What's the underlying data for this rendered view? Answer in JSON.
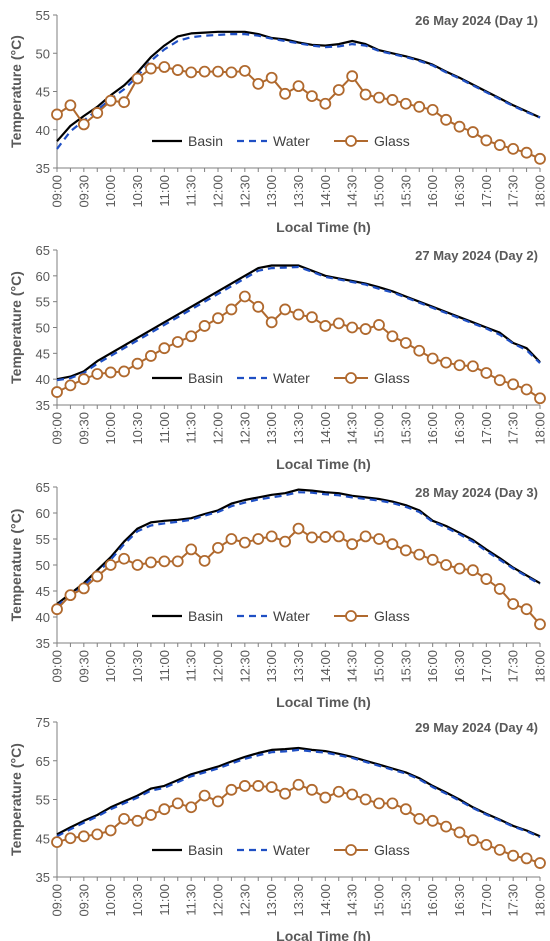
{
  "colors": {
    "basin": "#000000",
    "water": "#1f4fc4",
    "glass": "#b0692e",
    "axis": "#7f7f7f",
    "text": "#595959"
  },
  "chart_data": [
    {
      "type": "line",
      "title": "26 May 2024 (Day 1)",
      "xlabel": "Local Time (h)",
      "ylabel": "Temperature (°C)",
      "ylim": [
        35,
        55
      ],
      "yticks": [
        "35",
        "40",
        "45",
        "50",
        "55"
      ],
      "x": [
        "09:00",
        "09:15",
        "09:30",
        "09:45",
        "10:00",
        "10:15",
        "10:30",
        "10:45",
        "11:00",
        "11:15",
        "11:30",
        "11:45",
        "12:00",
        "12:15",
        "12:30",
        "12:45",
        "13:00",
        "13:15",
        "13:30",
        "13:45",
        "14:00",
        "14:15",
        "14:30",
        "14:45",
        "15:00",
        "15:15",
        "15:30",
        "15:45",
        "16:00",
        "16:15",
        "16:30",
        "16:45",
        "17:00",
        "17:15",
        "17:30",
        "17:45",
        "18:00"
      ],
      "xtick_labels": [
        "09:00",
        "09:30",
        "10:00",
        "10:30",
        "11:00",
        "11:30",
        "12:00",
        "12:30",
        "13:00",
        "13:30",
        "14:00",
        "14:30",
        "15:00",
        "15:30",
        "16:00",
        "16:30",
        "17:00",
        "17:30",
        "18:00"
      ],
      "legend": "inside-lower-center",
      "series": [
        {
          "name": "Basin",
          "values": [
            38.5,
            40.5,
            41.8,
            43.0,
            44.5,
            45.8,
            47.5,
            49.5,
            51.0,
            52.2,
            52.6,
            52.7,
            52.8,
            52.8,
            52.8,
            52.5,
            52.0,
            51.8,
            51.4,
            51.1,
            51.0,
            51.2,
            51.6,
            51.2,
            50.4,
            50.0,
            49.6,
            49.1,
            48.5,
            47.6,
            46.8,
            45.9,
            45.0,
            44.1,
            43.2,
            42.4,
            41.6
          ]
        },
        {
          "name": "Water",
          "values": [
            37.5,
            39.8,
            41.2,
            42.6,
            44.0,
            45.3,
            47.0,
            49.0,
            50.5,
            51.6,
            52.1,
            52.3,
            52.4,
            52.5,
            52.5,
            52.3,
            51.9,
            51.6,
            51.3,
            51.0,
            50.8,
            50.9,
            51.2,
            51.0,
            50.3,
            49.9,
            49.5,
            49.0,
            48.4,
            47.5,
            46.7,
            45.8,
            44.9,
            44.0,
            43.1,
            42.3,
            41.6
          ]
        },
        {
          "name": "Glass",
          "values": [
            42.0,
            43.2,
            40.7,
            42.2,
            43.8,
            43.6,
            46.7,
            48.0,
            48.2,
            47.8,
            47.5,
            47.6,
            47.6,
            47.5,
            47.7,
            46.0,
            46.8,
            44.7,
            45.7,
            44.4,
            43.4,
            45.2,
            47.0,
            44.6,
            44.2,
            43.9,
            43.4,
            43.0,
            42.6,
            41.3,
            40.4,
            39.7,
            38.6,
            38.0,
            37.5,
            37.0,
            36.2
          ]
        }
      ]
    },
    {
      "type": "line",
      "title": "27 May 2024 (Day 2)",
      "xlabel": "Local Time (h)",
      "ylabel": "Temperature (°C)",
      "ylim": [
        35,
        65
      ],
      "yticks": [
        "35",
        "40",
        "45",
        "50",
        "55",
        "60",
        "65"
      ],
      "x": [
        "09:00",
        "09:15",
        "09:30",
        "09:45",
        "10:00",
        "10:15",
        "10:30",
        "10:45",
        "11:00",
        "11:15",
        "11:30",
        "11:45",
        "12:00",
        "12:15",
        "12:30",
        "12:45",
        "13:00",
        "13:15",
        "13:30",
        "13:45",
        "14:00",
        "14:15",
        "14:30",
        "14:45",
        "15:00",
        "15:15",
        "15:30",
        "15:45",
        "16:00",
        "16:15",
        "16:30",
        "16:45",
        "17:00",
        "17:15",
        "17:30",
        "17:45",
        "18:00"
      ],
      "xtick_labels": [
        "09:00",
        "09:30",
        "10:00",
        "10:30",
        "11:00",
        "11:30",
        "12:00",
        "12:30",
        "13:00",
        "13:30",
        "14:00",
        "14:30",
        "15:00",
        "15:30",
        "16:00",
        "16:30",
        "17:00",
        "17:30",
        "18:00"
      ],
      "legend": "inside-lower-center",
      "series": [
        {
          "name": "Basin",
          "values": [
            40.0,
            40.5,
            41.5,
            43.5,
            45.0,
            46.5,
            48.0,
            49.5,
            51.0,
            52.5,
            54.0,
            55.5,
            57.0,
            58.5,
            60.0,
            61.5,
            62.0,
            62.0,
            62.0,
            61.0,
            60.0,
            59.5,
            59.0,
            58.5,
            57.8,
            57.0,
            56.0,
            55.0,
            54.0,
            53.0,
            52.0,
            51.0,
            50.0,
            49.0,
            47.0,
            46.0,
            43.3
          ]
        },
        {
          "name": "Water",
          "values": [
            39.8,
            40.2,
            41.2,
            43.0,
            44.5,
            46.0,
            47.5,
            49.0,
            50.5,
            52.0,
            53.5,
            55.0,
            56.5,
            58.0,
            59.5,
            61.0,
            61.5,
            61.6,
            61.7,
            60.8,
            59.8,
            59.3,
            58.8,
            58.3,
            57.5,
            56.8,
            55.8,
            54.8,
            53.8,
            52.8,
            51.8,
            50.8,
            49.8,
            48.6,
            46.9,
            45.6,
            43.1
          ]
        },
        {
          "name": "Glass",
          "values": [
            37.5,
            38.8,
            40.0,
            41.0,
            41.3,
            41.5,
            43.0,
            44.5,
            46.0,
            47.2,
            48.3,
            50.3,
            51.8,
            53.5,
            56.0,
            54.0,
            51.0,
            53.5,
            52.5,
            52.0,
            50.3,
            50.8,
            50.0,
            49.7,
            50.5,
            48.3,
            47.0,
            45.5,
            44.0,
            43.2,
            42.7,
            42.5,
            41.2,
            39.8,
            39.0,
            38.0,
            36.3
          ]
        }
      ]
    },
    {
      "type": "line",
      "title": "28 May 2024 (Day 3)",
      "xlabel": "Local Time (h)",
      "ylabel": "Temperature (°C)",
      "ylim": [
        35,
        65
      ],
      "yticks": [
        "35",
        "40",
        "45",
        "50",
        "55",
        "60",
        "65"
      ],
      "x": [
        "09:00",
        "09:15",
        "09:30",
        "09:45",
        "10:00",
        "10:15",
        "10:30",
        "10:45",
        "11:00",
        "11:15",
        "11:30",
        "11:45",
        "12:00",
        "12:15",
        "12:30",
        "12:45",
        "13:00",
        "13:15",
        "13:30",
        "13:45",
        "14:00",
        "14:15",
        "14:30",
        "14:45",
        "15:00",
        "15:15",
        "15:30",
        "15:45",
        "16:00",
        "16:15",
        "16:30",
        "16:45",
        "17:00",
        "17:15",
        "17:30",
        "17:45",
        "18:00"
      ],
      "xtick_labels": [
        "09:00",
        "09:30",
        "10:00",
        "10:30",
        "11:00",
        "11:30",
        "12:00",
        "12:30",
        "13:00",
        "13:30",
        "14:00",
        "14:30",
        "15:00",
        "15:30",
        "16:00",
        "16:30",
        "17:00",
        "17:30",
        "18:00"
      ],
      "legend": "inside-lower-center",
      "series": [
        {
          "name": "Basin",
          "values": [
            42.5,
            44.5,
            46.5,
            49.0,
            51.5,
            54.5,
            57.0,
            58.2,
            58.5,
            58.7,
            59.0,
            59.8,
            60.5,
            61.8,
            62.5,
            63.0,
            63.5,
            63.8,
            64.5,
            64.3,
            64.0,
            63.8,
            63.3,
            63.0,
            62.7,
            62.2,
            61.5,
            60.5,
            58.5,
            57.5,
            56.2,
            54.8,
            53.0,
            51.3,
            49.5,
            48.0,
            46.5
          ]
        },
        {
          "name": "Water",
          "values": [
            42.2,
            44.0,
            46.0,
            48.5,
            51.0,
            54.0,
            56.5,
            57.6,
            58.0,
            58.3,
            58.7,
            59.5,
            60.2,
            61.3,
            62.0,
            62.6,
            63.0,
            63.4,
            64.0,
            63.9,
            63.6,
            63.4,
            63.0,
            62.7,
            62.4,
            61.9,
            61.2,
            60.2,
            58.3,
            57.2,
            55.9,
            54.5,
            52.7,
            51.0,
            49.3,
            47.8,
            46.3
          ]
        },
        {
          "name": "Glass",
          "values": [
            41.5,
            44.2,
            45.5,
            47.8,
            50.0,
            51.2,
            50.0,
            50.5,
            50.7,
            50.7,
            53.0,
            50.8,
            53.3,
            55.0,
            54.3,
            55.0,
            55.5,
            54.5,
            57.0,
            55.3,
            55.4,
            55.5,
            54.0,
            55.5,
            55.0,
            54.0,
            52.8,
            52.0,
            51.0,
            50.0,
            49.3,
            49.0,
            47.3,
            45.4,
            42.5,
            41.5,
            38.6
          ]
        }
      ]
    },
    {
      "type": "line",
      "title": "29 May 2024 (Day 4)",
      "xlabel": "Local Time (h)",
      "ylabel": "Temperature (°C)",
      "ylim": [
        35,
        75
      ],
      "yticks": [
        "35",
        "45",
        "55",
        "65",
        "75"
      ],
      "x": [
        "09:00",
        "09:15",
        "09:30",
        "09:45",
        "10:00",
        "10:15",
        "10:30",
        "10:45",
        "11:00",
        "11:15",
        "11:30",
        "11:45",
        "12:00",
        "12:15",
        "12:30",
        "12:45",
        "13:00",
        "13:15",
        "13:30",
        "13:45",
        "14:00",
        "14:15",
        "14:30",
        "14:45",
        "15:00",
        "15:15",
        "15:30",
        "15:45",
        "16:00",
        "16:15",
        "16:30",
        "16:45",
        "17:00",
        "17:15",
        "17:30",
        "17:45",
        "18:00"
      ],
      "xtick_labels": [
        "09:00",
        "09:30",
        "10:00",
        "10:30",
        "11:00",
        "11:30",
        "12:00",
        "12:30",
        "13:00",
        "13:30",
        "14:00",
        "14:30",
        "15:00",
        "15:30",
        "16:00",
        "16:30",
        "17:00",
        "17:30",
        "18:00"
      ],
      "legend": "inside-lower-center",
      "series": [
        {
          "name": "Basin",
          "values": [
            46.0,
            47.8,
            49.5,
            51.0,
            53.0,
            54.5,
            56.0,
            57.8,
            58.5,
            60.0,
            61.5,
            62.5,
            63.5,
            64.8,
            66.0,
            67.0,
            67.8,
            68.0,
            68.3,
            67.8,
            67.5,
            66.8,
            66.0,
            65.0,
            64.0,
            63.0,
            62.0,
            60.5,
            58.5,
            56.8,
            55.0,
            53.0,
            51.3,
            49.8,
            48.2,
            47.0,
            45.5
          ]
        },
        {
          "name": "Water",
          "values": [
            45.5,
            47.3,
            49.0,
            50.6,
            52.5,
            54.0,
            55.5,
            57.3,
            58.0,
            59.5,
            61.0,
            62.0,
            63.0,
            64.3,
            65.5,
            66.4,
            67.2,
            67.4,
            67.8,
            67.4,
            67.1,
            66.4,
            65.7,
            64.7,
            63.7,
            62.7,
            61.7,
            60.2,
            58.2,
            56.5,
            54.7,
            52.8,
            51.1,
            49.6,
            48.0,
            46.8,
            45.3
          ]
        },
        {
          "name": "Glass",
          "values": [
            44.0,
            45.0,
            45.5,
            46.0,
            47.0,
            50.0,
            49.5,
            51.0,
            52.5,
            54.0,
            53.0,
            56.0,
            54.5,
            57.5,
            58.5,
            58.5,
            58.2,
            56.5,
            58.8,
            57.5,
            55.5,
            57.0,
            56.3,
            55.0,
            54.0,
            54.0,
            52.5,
            50.0,
            49.5,
            48.0,
            46.5,
            44.5,
            43.3,
            42.0,
            40.5,
            39.8,
            38.6
          ]
        }
      ]
    }
  ]
}
